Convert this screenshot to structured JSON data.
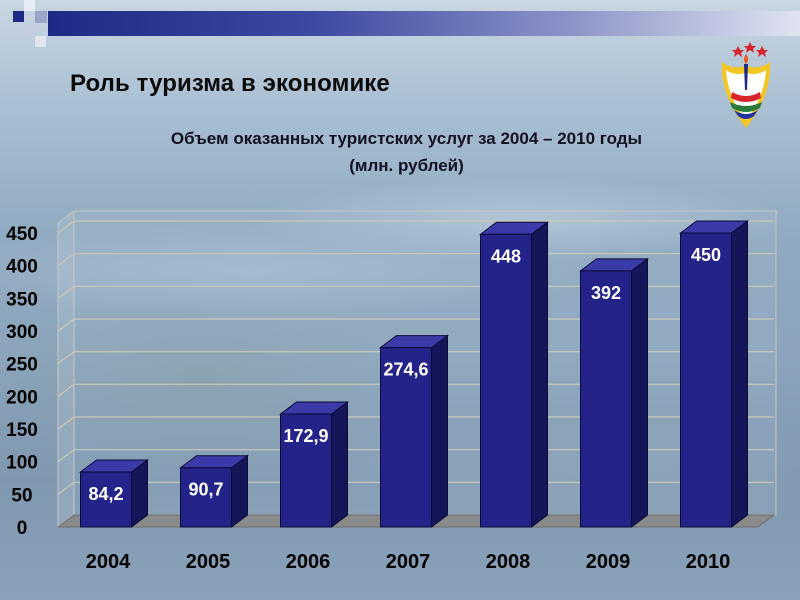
{
  "slide": {
    "title": "Роль туризма в экономике",
    "subtitle_line1": "Объем оказанных туристских услуг за 2004 – 2010 годы",
    "subtitle_line2": "(млн. рублей)"
  },
  "colors": {
    "bar_front": "#23238a",
    "bar_side": "#15155a",
    "bar_top": "#3a3aa8",
    "band": "#1f2a86"
  },
  "chart_data": {
    "type": "bar",
    "title": "Объем оказанных туристских услуг за 2004 – 2010 годы",
    "ylabel": "",
    "xlabel": "",
    "categories": [
      "2004",
      "2005",
      "2006",
      "2007",
      "2008",
      "2009",
      "2010"
    ],
    "values": [
      84.2,
      90.7,
      172.9,
      274.6,
      448,
      392,
      450
    ],
    "value_labels": [
      "84,2",
      "90,7",
      "172,9",
      "274,6",
      "448",
      "392",
      "450"
    ],
    "y_ticks": [
      0,
      50,
      100,
      150,
      200,
      250,
      300,
      350,
      400,
      450
    ],
    "ylim": [
      0,
      450
    ],
    "grid": true,
    "style": "3d"
  }
}
